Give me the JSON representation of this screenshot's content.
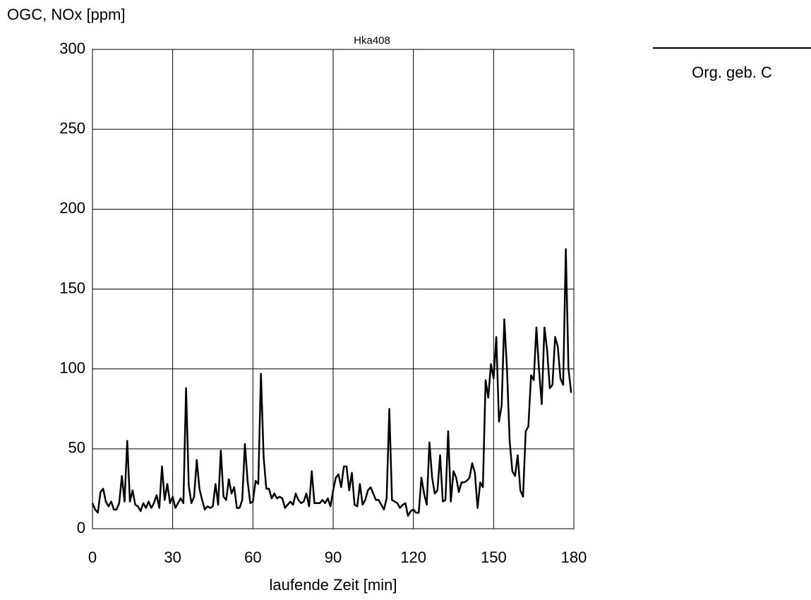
{
  "chart_data": {
    "type": "line",
    "title": "Hka408",
    "y_label": "OGC, NOx [ppm]",
    "x_label": "laufende Zeit [min]",
    "x": [
      0,
      1,
      2,
      3,
      4,
      5,
      6,
      7,
      8,
      9,
      10,
      11,
      12,
      13,
      14,
      15,
      16,
      17,
      18,
      19,
      20,
      21,
      22,
      23,
      24,
      25,
      26,
      27,
      28,
      29,
      30,
      31,
      32,
      33,
      34,
      35,
      36,
      37,
      38,
      39,
      40,
      41,
      42,
      43,
      44,
      45,
      46,
      47,
      48,
      49,
      50,
      51,
      52,
      53,
      54,
      55,
      56,
      57,
      58,
      59,
      60,
      61,
      62,
      63,
      64,
      65,
      66,
      67,
      68,
      69,
      70,
      71,
      72,
      73,
      74,
      75,
      76,
      77,
      78,
      79,
      80,
      81,
      82,
      83,
      84,
      85,
      86,
      87,
      88,
      89,
      90,
      91,
      92,
      93,
      94,
      95,
      96,
      97,
      98,
      99,
      100,
      101,
      102,
      103,
      104,
      105,
      106,
      107,
      108,
      109,
      110,
      111,
      112,
      113,
      114,
      115,
      116,
      117,
      118,
      119,
      120,
      121,
      122,
      123,
      124,
      125,
      126,
      127,
      128,
      129,
      130,
      131,
      132,
      133,
      134,
      135,
      136,
      137,
      138,
      139,
      140,
      141,
      142,
      143,
      144,
      145,
      146,
      147,
      148,
      149,
      150,
      151,
      152,
      153,
      154,
      155,
      156,
      157,
      158,
      159,
      160,
      161,
      162,
      163,
      164,
      165,
      166,
      167,
      168,
      169,
      170,
      171,
      172,
      173,
      174,
      175,
      176,
      177,
      178,
      179
    ],
    "series": [
      {
        "name": "Org. geb. C",
        "color": "#000000",
        "values": [
          16,
          12,
          10,
          23,
          25,
          17,
          14,
          17,
          12,
          12,
          16,
          33,
          17,
          55,
          17,
          24,
          15,
          14,
          11,
          16,
          13,
          17,
          13,
          16,
          21,
          13,
          39,
          18,
          28,
          16,
          20,
          13,
          16,
          19,
          16,
          88,
          27,
          16,
          20,
          43,
          25,
          18,
          12,
          14,
          13,
          14,
          28,
          15,
          49,
          20,
          18,
          31,
          22,
          26,
          13,
          13,
          18,
          53,
          30,
          16,
          17,
          30,
          28,
          97,
          45,
          25,
          25,
          19,
          22,
          19,
          20,
          19,
          13,
          15,
          17,
          15,
          22,
          18,
          16,
          17,
          22,
          14,
          36,
          16,
          16,
          16,
          18,
          16,
          19,
          14,
          24,
          32,
          34,
          26,
          39,
          39,
          24,
          35,
          15,
          14,
          28,
          15,
          18,
          24,
          26,
          22,
          18,
          18,
          15,
          12,
          19,
          75,
          18,
          17,
          16,
          13,
          15,
          16,
          8,
          11,
          12,
          10,
          10,
          32,
          22,
          15,
          54,
          32,
          22,
          24,
          46,
          17,
          18,
          61,
          17,
          36,
          32,
          23,
          29,
          29,
          30,
          32,
          41,
          35,
          13,
          29,
          26,
          93,
          82,
          103,
          94,
          120,
          67,
          77,
          131,
          100,
          55,
          36,
          33,
          46,
          24,
          20,
          61,
          64,
          96,
          93,
          126,
          99,
          78,
          126,
          112,
          88,
          90,
          120,
          114,
          94,
          90,
          175,
          100,
          85
        ]
      }
    ],
    "xlim": [
      0,
      180
    ],
    "xticks": [
      0,
      30,
      60,
      90,
      120,
      150,
      180
    ],
    "ylim": [
      0,
      300
    ],
    "yticks": [
      0,
      50,
      100,
      150,
      200,
      250,
      300
    ],
    "grid": true
  }
}
